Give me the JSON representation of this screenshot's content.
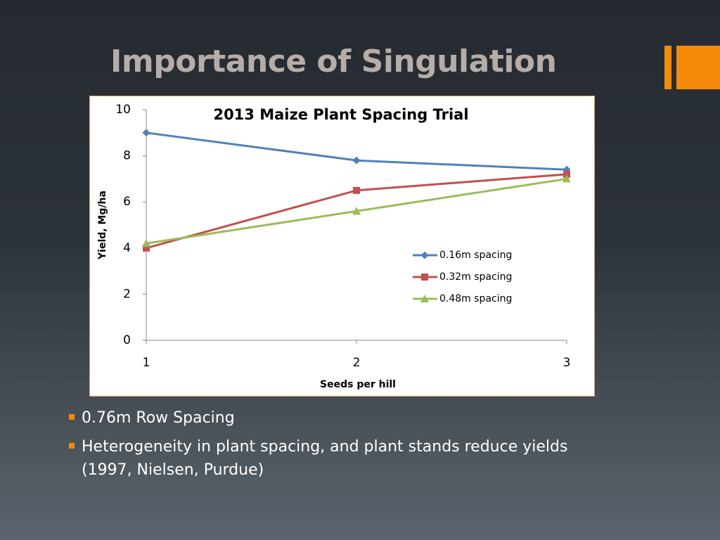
{
  "slide_title": "Importance of Singulation",
  "chart_data": {
    "type": "line",
    "title": "2013 Maize Plant Spacing Trial",
    "x_label": "Seeds per hill",
    "y_label": "Yield, Mg/ha",
    "x": [
      1,
      2,
      3
    ],
    "xlim": [
      1,
      3
    ],
    "xticks": [
      1,
      2,
      3
    ],
    "ylim": [
      0,
      10
    ],
    "yticks": [
      0,
      2,
      4,
      6,
      8,
      10
    ],
    "grid": false,
    "series": [
      {
        "name": "0.16m spacing",
        "color": "#4f81bd",
        "marker": "diamond",
        "values": [
          9.0,
          7.8,
          7.4
        ]
      },
      {
        "name": "0.32m spacing",
        "color": "#c0504d",
        "marker": "square",
        "values": [
          4.0,
          6.5,
          7.2
        ]
      },
      {
        "name": "0.48m spacing",
        "color": "#9bbb59",
        "marker": "triangle",
        "values": [
          4.2,
          5.6,
          7.0
        ]
      }
    ]
  },
  "bullets": [
    "0.76m Row Spacing",
    "Heterogeneity in plant spacing, and plant stands reduce yields (1997, Nielsen, Purdue)"
  ]
}
